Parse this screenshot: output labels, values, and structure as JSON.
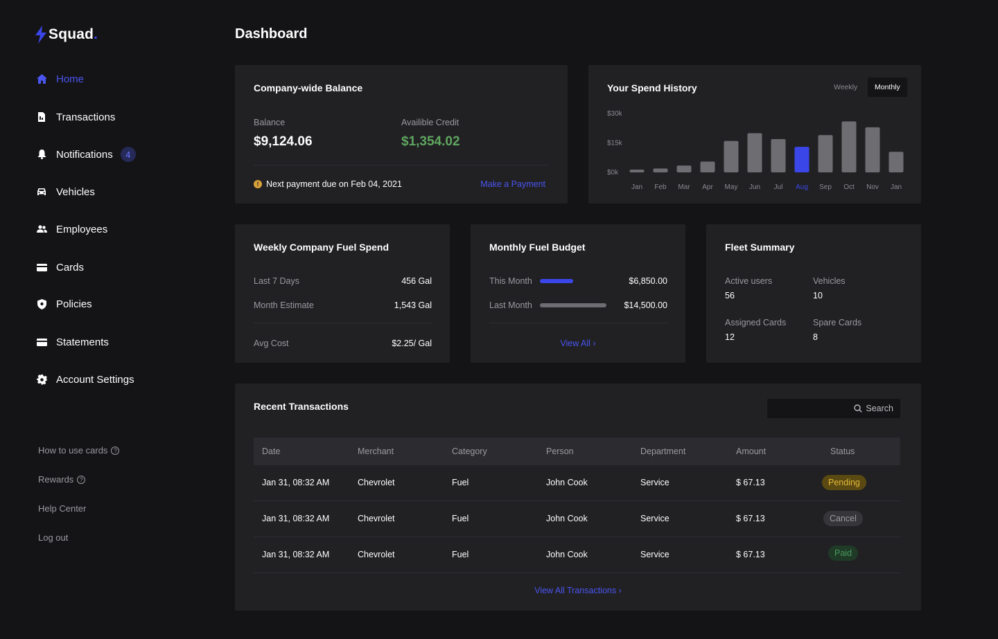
{
  "brand": {
    "name": "Squad",
    "dot": ".",
    "accent": "#3b46e8"
  },
  "nav": {
    "items": [
      {
        "label": "Home",
        "icon": "home-icon",
        "active": true
      },
      {
        "label": "Transactions",
        "icon": "receipt-icon"
      },
      {
        "label": "Notifications",
        "icon": "bell-icon",
        "badge": "4"
      },
      {
        "label": "Vehicles",
        "icon": "car-icon"
      },
      {
        "label": "Employees",
        "icon": "users-icon"
      },
      {
        "label": "Cards",
        "icon": "card-icon"
      },
      {
        "label": "Policies",
        "icon": "shield-icon"
      },
      {
        "label": "Statements",
        "icon": "statement-icon"
      },
      {
        "label": "Account Settings",
        "icon": "gear-icon"
      }
    ],
    "links": [
      {
        "label": "How to use cards",
        "help": "?"
      },
      {
        "label": "Rewards",
        "help": "?"
      },
      {
        "label": "Help Center"
      },
      {
        "label": "Log out"
      }
    ]
  },
  "page": {
    "title": "Dashboard"
  },
  "balance_card": {
    "title": "Company-wide Balance",
    "balance_label": "Balance",
    "balance_value": "$9,124.06",
    "credit_label": "Availible Credit",
    "credit_value": "$1,354.02",
    "notice": "Next payment due on Feb 04, 2021",
    "action": "Make a Payment",
    "info_glyph": "!",
    "credit_color": "#5fa65f"
  },
  "spend_history": {
    "title": "Your Spend History",
    "toggle_weekly": "Weekly",
    "toggle_monthly": "Monthly",
    "selected_toggle": "Monthly"
  },
  "chart_data": {
    "type": "bar",
    "title": "Your Spend History",
    "categories": [
      "Jan",
      "Feb",
      "Mar",
      "Apr",
      "May",
      "Jun",
      "Jul",
      "Aug",
      "Sep",
      "Oct",
      "Nov",
      "Jan"
    ],
    "values": [
      1000,
      2000,
      3500,
      5500,
      16000,
      20000,
      17000,
      13000,
      19000,
      26000,
      23000,
      10500
    ],
    "highlight_index": 7,
    "yticks": [
      "$30k",
      "$15k",
      "$0k"
    ],
    "ylim": [
      0,
      30000
    ],
    "grid": false,
    "bar_color": "#6e6e72",
    "highlight_color": "#3b46e8"
  },
  "fuel_spend": {
    "title": "Weekly Company Fuel Spend",
    "rows": [
      {
        "label": "Last 7 Days",
        "value": "456 Gal"
      },
      {
        "label": "Month Estimate",
        "value": "1,543 Gal"
      },
      {
        "label": "Avg Cost",
        "value": "$2.25/ Gal"
      }
    ]
  },
  "fuel_budget": {
    "title": "Monthly Fuel Budget",
    "rows": [
      {
        "label": "This Month",
        "value": "$6,850.00",
        "fill": 0.47,
        "color": "#3b46e8"
      },
      {
        "label": "Last Month",
        "value": "$14,500.00",
        "fill": 1.0,
        "color": "#6e6e72"
      }
    ],
    "action": "View All",
    "chevron": "›"
  },
  "fleet": {
    "title": "Fleet Summary",
    "stats": [
      {
        "label": "Active users",
        "value": "56"
      },
      {
        "label": "Vehicles",
        "value": "10"
      },
      {
        "label": "Assigned Cards",
        "value": "12"
      },
      {
        "label": "Spare Cards",
        "value": "8"
      }
    ]
  },
  "transactions": {
    "title": "Recent Transactions",
    "search_label": "Search",
    "columns": [
      "Date",
      "Merchant",
      "Category",
      "Person",
      "Department",
      "Amount",
      "Status"
    ],
    "rows": [
      [
        "Jan 31, 08:32 AM",
        "Chevrolet",
        "Fuel",
        "John Cook",
        "Service",
        "$ 67.13",
        "Pending"
      ],
      [
        "Jan 31, 08:32 AM",
        "Chevrolet",
        "Fuel",
        "John Cook",
        "Service",
        "$ 67.13",
        "Cancel"
      ],
      [
        "Jan 31, 08:32 AM",
        "Chevrolet",
        "Fuel",
        "John Cook",
        "Service",
        "$ 67.13",
        "Paid"
      ]
    ],
    "status_colors": {
      "Pending": {
        "bg": "#5a4a12",
        "fg": "#e6b93a"
      },
      "Cancel": {
        "bg": "#36363a",
        "fg": "#9a9aa0"
      },
      "Paid": {
        "bg": "#1f3a26",
        "fg": "#4a9a5e"
      }
    },
    "action": "View All Transactions",
    "chevron": "›"
  }
}
